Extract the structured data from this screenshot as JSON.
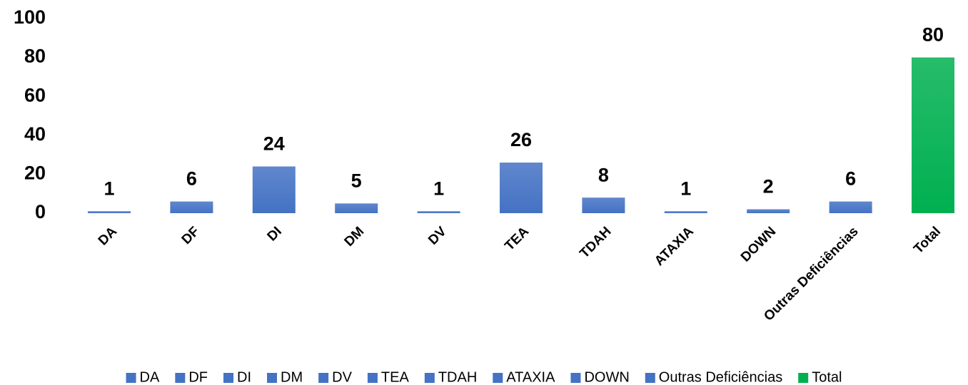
{
  "chart_data": {
    "type": "bar",
    "categories": [
      "DA",
      "DF",
      "DI",
      "DM",
      "DV",
      "TEA",
      "TDAH",
      "ATAXIA",
      "DOWN",
      "Outras Deficiências",
      "Total"
    ],
    "values": [
      1,
      6,
      24,
      5,
      1,
      26,
      8,
      1,
      2,
      6,
      80
    ],
    "colors": [
      "#4472c4",
      "#4472c4",
      "#4472c4",
      "#4472c4",
      "#4472c4",
      "#4472c4",
      "#4472c4",
      "#4472c4",
      "#4472c4",
      "#4472c4",
      "#00b050"
    ],
    "ylim": [
      0,
      100
    ],
    "yticks": [
      0,
      20,
      40,
      60,
      80,
      100
    ],
    "grid": false,
    "legend": "bottom"
  }
}
